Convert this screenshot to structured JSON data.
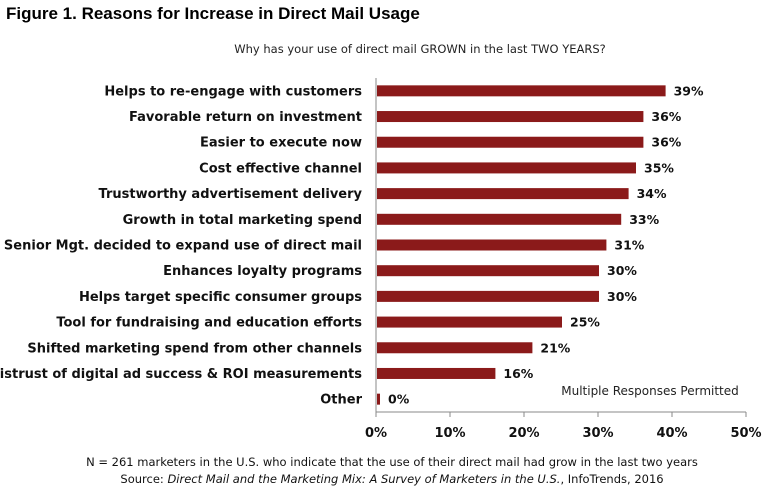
{
  "figure_title": "Figure 1. Reasons for Increase in Direct Mail Usage",
  "footer": {
    "note": "N = 261 marketers in the U.S. who indicate that the use of their direct mail had grow in the last two years",
    "source_prefix": "Source: ",
    "source_title": "Direct Mail and the Marketing Mix: A Survey of Marketers in the U.S.",
    "source_suffix": ", InfoTrends, 2016"
  },
  "colors": {
    "bar": "#8b1a1a",
    "axis": "#888888"
  },
  "chart_data": {
    "type": "bar",
    "orientation": "horizontal",
    "title": "Why has your use of direct mail GROWN in the last TWO YEARS?",
    "annotation": "Multiple Responses Permitted",
    "categories": [
      "Helps to re-engage with customers",
      "Favorable return on investment",
      "Easier to execute now",
      "Cost effective channel",
      "Trustworthy advertisement delivery",
      "Growth in total marketing spend",
      "Senior Mgt. decided to expand use of direct mail",
      "Enhances loyalty programs",
      "Helps target specific consumer groups",
      "Tool for fundraising and education efforts",
      "Shifted marketing spend from other channels",
      "Mistrust of digital ad success & ROI measurements",
      "Other"
    ],
    "values": [
      39,
      36,
      36,
      35,
      34,
      33,
      31,
      30,
      30,
      25,
      21,
      16,
      0
    ],
    "value_labels": [
      "39%",
      "36%",
      "36%",
      "35%",
      "34%",
      "33%",
      "31%",
      "30%",
      "30%",
      "25%",
      "21%",
      "16%",
      "0%"
    ],
    "xlim": [
      0,
      50
    ],
    "xticks": [
      0,
      10,
      20,
      30,
      40,
      50
    ],
    "xtick_labels": [
      "0%",
      "10%",
      "20%",
      "30%",
      "40%",
      "50%"
    ],
    "xlabel": "",
    "ylabel": "",
    "grid": false,
    "legend": "none"
  }
}
